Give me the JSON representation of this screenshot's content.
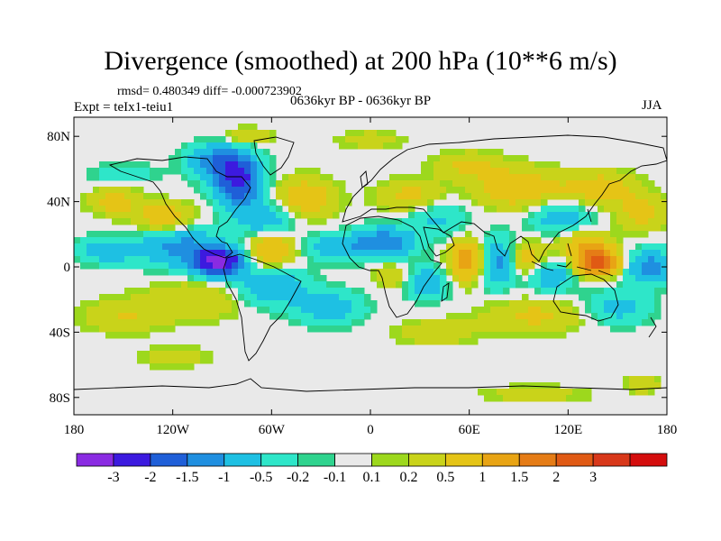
{
  "map": {
    "title": "Divergence (smoothed) at 200 hPa (10**6 m/s)",
    "stats_text": "rmsd= 0.480349 diff= -0.000723902",
    "experiment": "Expt = teIx1-teiu1",
    "period": "0636kyr BP - 0636kyr BP",
    "season": "JJA",
    "lat_ticks": [
      {
        "lat": 80,
        "label": "80N"
      },
      {
        "lat": 40,
        "label": "40N"
      },
      {
        "lat": 0,
        "label": "0"
      },
      {
        "lat": -40,
        "label": "40S"
      },
      {
        "lat": -80,
        "label": "80S"
      }
    ],
    "lon_ticks": [
      {
        "lon": -180,
        "label": "180"
      },
      {
        "lon": -120,
        "label": "120W"
      },
      {
        "lon": -60,
        "label": "60W"
      },
      {
        "lon": 0,
        "label": "0"
      },
      {
        "lon": 60,
        "label": "60E"
      },
      {
        "lon": 120,
        "label": "120E"
      },
      {
        "lon": 180,
        "label": "180"
      }
    ],
    "colorbar": {
      "colors": [
        "#8a2be2",
        "#3c1adf",
        "#1f5fd8",
        "#1f8fe0",
        "#1ec0e3",
        "#2ee6c9",
        "#2fd38e",
        "#e9e9e9",
        "#9dd81d",
        "#c9d31a",
        "#e5c416",
        "#e8a414",
        "#e57c16",
        "#e05a14",
        "#d8381a",
        "#d40d0d"
      ],
      "labels": [
        "-3",
        "-2",
        "-1.5",
        "-1",
        "-0.5",
        "-0.2",
        "-0.1",
        "0.1",
        "0.2",
        "0.5",
        "1",
        "1.5",
        "2",
        "3"
      ]
    },
    "blobs": [
      {
        "lon": -92,
        "lat": 3,
        "v": -3.2,
        "rx": 14,
        "ry": 8
      },
      {
        "lon": -115,
        "lat": 12,
        "v": -1.2,
        "rx": 25,
        "ry": 12
      },
      {
        "lon": -80,
        "lat": 52,
        "v": -2.2,
        "rx": 14,
        "ry": 14
      },
      {
        "lon": -92,
        "lat": 65,
        "v": -1.3,
        "rx": 18,
        "ry": 10
      },
      {
        "lon": -65,
        "lat": 30,
        "v": -0.9,
        "rx": 18,
        "ry": 10
      },
      {
        "lon": -125,
        "lat": 30,
        "v": 0.9,
        "rx": 18,
        "ry": 9
      },
      {
        "lon": -155,
        "lat": 40,
        "v": 0.7,
        "rx": 15,
        "ry": 8
      },
      {
        "lon": -160,
        "lat": 10,
        "v": -0.8,
        "rx": 18,
        "ry": 8
      },
      {
        "lon": -150,
        "lat": 57,
        "v": -0.4,
        "rx": 20,
        "ry": 6
      },
      {
        "lon": -60,
        "lat": 10,
        "v": 1.1,
        "rx": 15,
        "ry": 10
      },
      {
        "lon": -60,
        "lat": -12,
        "v": -0.9,
        "rx": 22,
        "ry": 12
      },
      {
        "lon": -25,
        "lat": -25,
        "v": -0.8,
        "rx": 20,
        "ry": 10
      },
      {
        "lon": -105,
        "lat": -20,
        "v": 0.5,
        "rx": 30,
        "ry": 12
      },
      {
        "lon": -40,
        "lat": 42,
        "v": 0.9,
        "rx": 18,
        "ry": 12
      },
      {
        "lon": -22,
        "lat": 12,
        "v": -0.8,
        "rx": 20,
        "ry": 8
      },
      {
        "lon": 8,
        "lat": 15,
        "v": -1.4,
        "rx": 18,
        "ry": 9
      },
      {
        "lon": 12,
        "lat": -5,
        "v": 0.5,
        "rx": 10,
        "ry": 8
      },
      {
        "lon": 25,
        "lat": 43,
        "v": 0.7,
        "rx": 20,
        "ry": 10
      },
      {
        "lon": 35,
        "lat": -10,
        "v": -0.9,
        "rx": 12,
        "ry": 10
      },
      {
        "lon": 40,
        "lat": 30,
        "v": -0.6,
        "rx": 18,
        "ry": 12
      },
      {
        "lon": 58,
        "lat": 4,
        "v": 1.4,
        "rx": 10,
        "ry": 12
      },
      {
        "lon": 78,
        "lat": 3,
        "v": -1.3,
        "rx": 10,
        "ry": 14
      },
      {
        "lon": 95,
        "lat": 5,
        "v": 0.8,
        "rx": 14,
        "ry": 10
      },
      {
        "lon": 110,
        "lat": -5,
        "v": -0.9,
        "rx": 14,
        "ry": 10
      },
      {
        "lon": 138,
        "lat": 3,
        "v": 2.3,
        "rx": 14,
        "ry": 8
      },
      {
        "lon": 130,
        "lat": 15,
        "v": 0.8,
        "rx": 15,
        "ry": 8
      },
      {
        "lon": 170,
        "lat": 0,
        "v": -1.3,
        "rx": 16,
        "ry": 10
      },
      {
        "lon": 90,
        "lat": 48,
        "v": 0.9,
        "rx": 25,
        "ry": 12
      },
      {
        "lon": 140,
        "lat": 48,
        "v": 0.8,
        "rx": 22,
        "ry": 10
      },
      {
        "lon": 60,
        "lat": 62,
        "v": 0.6,
        "rx": 20,
        "ry": 8
      },
      {
        "lon": 115,
        "lat": 30,
        "v": -0.8,
        "rx": 18,
        "ry": 10
      },
      {
        "lon": 165,
        "lat": 33,
        "v": 0.7,
        "rx": 15,
        "ry": 10
      },
      {
        "lon": 100,
        "lat": -30,
        "v": 0.6,
        "rx": 30,
        "ry": 10
      },
      {
        "lon": 150,
        "lat": -25,
        "v": -0.7,
        "rx": 20,
        "ry": 10
      },
      {
        "lon": 40,
        "lat": -40,
        "v": 0.4,
        "rx": 25,
        "ry": 8
      },
      {
        "lon": -150,
        "lat": -30,
        "v": 0.5,
        "rx": 25,
        "ry": 10
      },
      {
        "lon": 100,
        "lat": -78,
        "v": 0.4,
        "rx": 30,
        "ry": 5
      },
      {
        "lon": 165,
        "lat": -72,
        "v": 0.5,
        "rx": 10,
        "ry": 5
      },
      {
        "lon": -75,
        "lat": 80,
        "v": 0.5,
        "rx": 15,
        "ry": 5
      },
      {
        "lon": 0,
        "lat": 78,
        "v": 0.4,
        "rx": 20,
        "ry": 5
      },
      {
        "lon": -120,
        "lat": -55,
        "v": 0.4,
        "rx": 20,
        "ry": 6
      }
    ]
  }
}
